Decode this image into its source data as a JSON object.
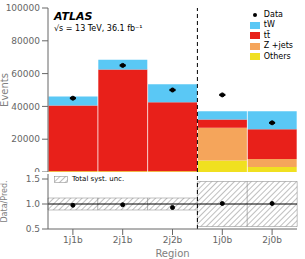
{
  "chart_data": [
    {
      "type": "bar",
      "stacked": true,
      "ylabel": "Events",
      "annotations": [
        "ATLAS",
        "√s = 13 TeV, 36.1 fb⁻¹"
      ],
      "categories": [
        "1j1b",
        "2j1b",
        "2j2b",
        "1j0b",
        "2j0b"
      ],
      "series": [
        {
          "name": "Others",
          "color": "#f0e020",
          "values": [
            500,
            500,
            500,
            7000,
            3000
          ]
        },
        {
          "name": "Z +jets",
          "color": "#f5a55b",
          "values": [
            0,
            0,
            0,
            20000,
            5000
          ]
        },
        {
          "name": "tt̄",
          "color": "#e8201a",
          "values": [
            40000,
            62000,
            42000,
            5000,
            18000
          ]
        },
        {
          "name": "tW",
          "color": "#5ac8f5",
          "values": [
            5500,
            6000,
            11000,
            5000,
            11000
          ]
        },
        {
          "name": "Data",
          "type": "scatter",
          "color": "#000000",
          "values": [
            45000,
            65000,
            50000,
            47000,
            30000
          ],
          "errors": [
            212.1320343559643,
            254.95097567963924,
            223.60679774997897,
            216.794833886788,
            173.20508075688772
          ]
        }
      ],
      "ylim": [
        0,
        100000
      ],
      "yticks": [
        0,
        20000,
        40000,
        60000,
        80000,
        100000
      ],
      "legend": "upper right",
      "tick_labels": "y"
    },
    {
      "type": "scatter",
      "ylabel": "Data/Pred.",
      "xlabel": "Region",
      "categories": [
        "1j1b",
        "2j1b",
        "2j2b",
        "1j0b",
        "2j0b"
      ],
      "series": [
        {
          "name": "Total syst. unc.",
          "type": "bar",
          "color": "gray",
          "low": [
            0.88,
            0.88,
            0.88,
            0.55,
            0.55
          ],
          "high": [
            1.12,
            1.12,
            1.12,
            1.45,
            1.45
          ]
        },
        {
          "type": "scatter",
          "color": "#000000",
          "values": [
            0.975,
            0.985,
            0.93,
            1.01,
            1.01
          ]
        }
      ],
      "ylim": [
        0.5,
        1.6
      ],
      "yticks": [
        0.5,
        {
          "value": 1,
          "label": "1.0"
        },
        1.5
      ],
      "legend": "upper left"
    }
  ]
}
